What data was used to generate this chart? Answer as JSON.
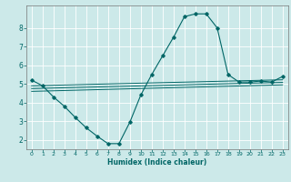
{
  "title": "",
  "xlabel": "Humidex (Indice chaleur)",
  "bg_color": "#cce9e9",
  "grid_color": "#ffffff",
  "line_color": "#006666",
  "xlim": [
    -0.5,
    23.5
  ],
  "ylim": [
    1.5,
    9.2
  ],
  "yticks": [
    2,
    3,
    4,
    5,
    6,
    7,
    8
  ],
  "xticks": [
    0,
    1,
    2,
    3,
    4,
    5,
    6,
    7,
    8,
    9,
    10,
    11,
    12,
    13,
    14,
    15,
    16,
    17,
    18,
    19,
    20,
    21,
    22,
    23
  ],
  "curve_x": [
    0,
    1,
    2,
    3,
    4,
    5,
    6,
    7,
    8,
    9,
    10,
    11,
    12,
    13,
    14,
    15,
    16,
    17,
    18,
    19,
    20,
    21,
    22,
    23
  ],
  "curve_y": [
    5.2,
    4.9,
    4.3,
    3.8,
    3.2,
    2.65,
    2.2,
    1.8,
    1.8,
    2.95,
    4.4,
    5.5,
    6.5,
    7.5,
    8.6,
    8.75,
    8.75,
    8.0,
    5.5,
    5.1,
    5.1,
    5.15,
    5.1,
    5.4
  ],
  "reg_lines": [
    {
      "x": [
        0,
        23
      ],
      "y": [
        4.6,
        4.95
      ]
    },
    {
      "x": [
        0,
        23
      ],
      "y": [
        4.75,
        5.08
      ]
    },
    {
      "x": [
        0,
        23
      ],
      "y": [
        4.9,
        5.22
      ]
    }
  ]
}
